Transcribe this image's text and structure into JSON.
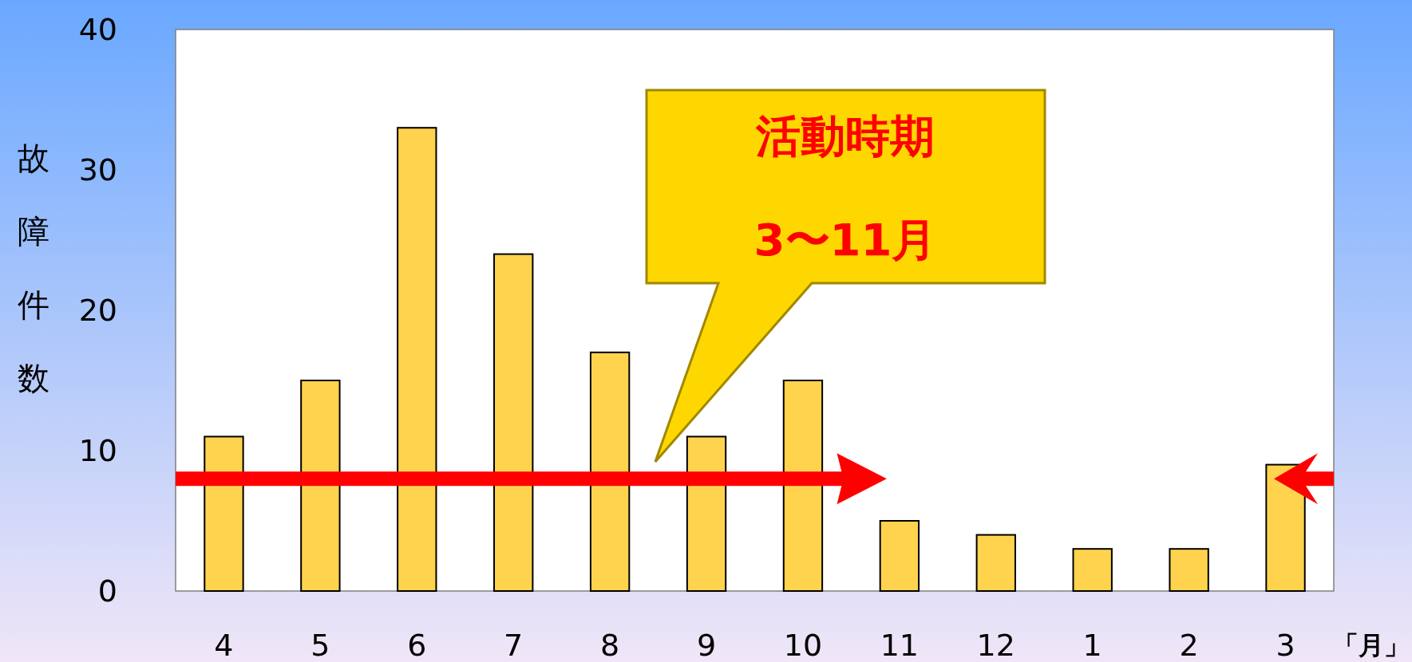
{
  "chart_data": {
    "type": "bar",
    "ylabel": "故障件数",
    "xlabel": "「月」",
    "categories": [
      "4",
      "5",
      "6",
      "7",
      "8",
      "9",
      "10",
      "11",
      "12",
      "1",
      "2",
      "3"
    ],
    "values": [
      11,
      15,
      33,
      24,
      17,
      11,
      15,
      5,
      4,
      3,
      3,
      9
    ],
    "color": "#ffd34d",
    "ylim": [
      0,
      40
    ],
    "yticks": [
      0,
      10,
      20,
      30,
      40
    ],
    "annotations": [
      "活動時期",
      "3〜11月"
    ]
  }
}
